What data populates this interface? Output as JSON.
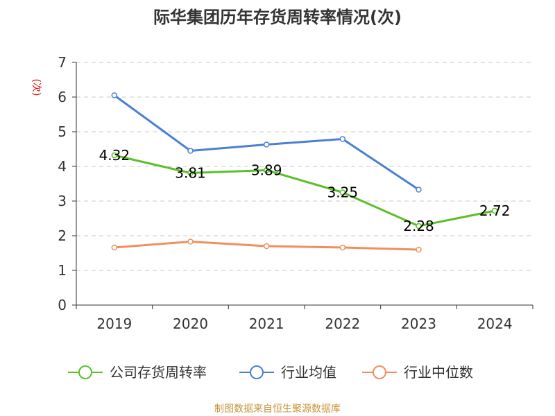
{
  "chart_data": {
    "type": "line",
    "title": "际华集团历年存货周转率情况(次)",
    "ylabel": "(次)",
    "xlabel": "",
    "categories": [
      "2019",
      "2020",
      "2021",
      "2022",
      "2023",
      "2024"
    ],
    "ylim": [
      0,
      7
    ],
    "yticks": [
      "0",
      "1",
      "2",
      "3",
      "4",
      "5",
      "6",
      "7"
    ],
    "grid": true,
    "legend_position": "bottom",
    "series": [
      {
        "name": "公司存货周转率",
        "color": "#5bbf28",
        "values": [
          4.32,
          3.81,
          3.89,
          3.25,
          2.28,
          2.72
        ],
        "labels": [
          "4.32",
          "3.81",
          "3.89",
          "3.25",
          "2.28",
          "2.72"
        ]
      },
      {
        "name": "行业均值",
        "color": "#4a7fd6",
        "values": [
          6.05,
          4.45,
          4.63,
          4.79,
          3.33,
          null
        ]
      },
      {
        "name": "行业中位数",
        "color": "#f28e5c",
        "values": [
          1.66,
          1.83,
          1.7,
          1.66,
          1.6,
          null
        ]
      }
    ]
  },
  "footer": "制图数据来自恒生聚源数据库"
}
